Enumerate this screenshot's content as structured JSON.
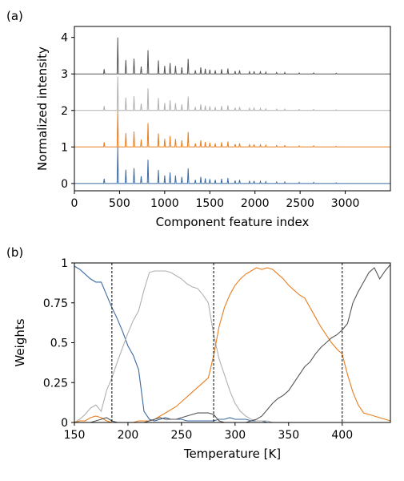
{
  "chart_data": [
    {
      "type": "line",
      "panel_label": "(a)",
      "xlabel": "Component feature index",
      "ylabel": "Normalized intensity",
      "xlim": [
        0,
        3500
      ],
      "ylim": [
        -0.2,
        4.3
      ],
      "xticks": [
        0,
        500,
        1000,
        1500,
        2000,
        2500,
        3000
      ],
      "yticks": [
        0,
        1,
        2,
        3,
        4
      ],
      "grid": false,
      "legend": "none",
      "peaks": [
        {
          "x": 330,
          "h": 0.13
        },
        {
          "x": 480,
          "h": 1.0
        },
        {
          "x": 570,
          "h": 0.38
        },
        {
          "x": 660,
          "h": 0.42
        },
        {
          "x": 740,
          "h": 0.2
        },
        {
          "x": 815,
          "h": 0.65
        },
        {
          "x": 930,
          "h": 0.37
        },
        {
          "x": 1000,
          "h": 0.22
        },
        {
          "x": 1060,
          "h": 0.3
        },
        {
          "x": 1120,
          "h": 0.22
        },
        {
          "x": 1190,
          "h": 0.18
        },
        {
          "x": 1260,
          "h": 0.41
        },
        {
          "x": 1340,
          "h": 0.1
        },
        {
          "x": 1400,
          "h": 0.18
        },
        {
          "x": 1450,
          "h": 0.14
        },
        {
          "x": 1500,
          "h": 0.12
        },
        {
          "x": 1560,
          "h": 0.1
        },
        {
          "x": 1630,
          "h": 0.13
        },
        {
          "x": 1700,
          "h": 0.15
        },
        {
          "x": 1780,
          "h": 0.08
        },
        {
          "x": 1830,
          "h": 0.1
        },
        {
          "x": 1940,
          "h": 0.06
        },
        {
          "x": 1990,
          "h": 0.07
        },
        {
          "x": 2060,
          "h": 0.06
        },
        {
          "x": 2120,
          "h": 0.05
        },
        {
          "x": 2240,
          "h": 0.04
        },
        {
          "x": 2330,
          "h": 0.04
        },
        {
          "x": 2490,
          "h": 0.03
        },
        {
          "x": 2650,
          "h": 0.03
        },
        {
          "x": 2900,
          "h": 0.02
        }
      ],
      "series": [
        {
          "offset": 0,
          "scale": 1.0,
          "color": "#3b6aa0"
        },
        {
          "offset": 1,
          "scale": 1.0,
          "color": "#e87e1f"
        },
        {
          "offset": 2,
          "scale": 0.93,
          "color": "#b0b0b0"
        },
        {
          "offset": 3,
          "scale": 1.0,
          "color": "#555555"
        }
      ]
    },
    {
      "type": "line",
      "panel_label": "(b)",
      "xlabel": "Temperature [K]",
      "ylabel": "Weights",
      "xlim": [
        150,
        445
      ],
      "ylim": [
        0,
        1
      ],
      "xticks": [
        150,
        200,
        250,
        300,
        350,
        400
      ],
      "yticks": [
        0,
        0.25,
        0.5,
        0.75,
        1
      ],
      "ytick_labels": [
        "0",
        "0.25",
        "0.5",
        "0.75",
        "1"
      ],
      "grid": false,
      "legend": "none",
      "vlines": [
        185,
        280,
        400
      ],
      "series": [
        {
          "color": "#3b6aa0",
          "x": [
            150,
            155,
            160,
            165,
            170,
            175,
            180,
            185,
            190,
            195,
            200,
            205,
            210,
            215,
            220,
            225,
            230,
            235,
            240,
            245,
            250,
            255,
            260,
            265,
            270,
            275,
            280,
            285,
            290,
            295,
            300,
            305,
            310,
            315,
            320,
            325,
            330,
            335,
            340,
            345,
            350,
            355,
            360,
            365,
            370,
            375,
            380,
            385,
            390,
            395,
            400,
            405,
            410,
            415,
            420,
            425,
            430,
            435,
            440,
            445
          ],
          "y": [
            0.98,
            0.96,
            0.93,
            0.9,
            0.88,
            0.88,
            0.8,
            0.72,
            0.65,
            0.57,
            0.48,
            0.42,
            0.33,
            0.07,
            0.02,
            0.01,
            0.02,
            0.03,
            0.02,
            0.02,
            0.02,
            0.01,
            0.01,
            0.01,
            0.01,
            0.01,
            0.01,
            0.02,
            0.02,
            0.03,
            0.02,
            0.02,
            0.02,
            0.01,
            0.01,
            0.01,
            0.0,
            0,
            0,
            0,
            0,
            0,
            0,
            0,
            0,
            0,
            0,
            0,
            0,
            0,
            0,
            0,
            0,
            0,
            0,
            0,
            0,
            0,
            0,
            0
          ]
        },
        {
          "color": "#b0b0b0",
          "x": [
            150,
            155,
            160,
            165,
            170,
            175,
            180,
            185,
            190,
            195,
            200,
            205,
            210,
            215,
            220,
            225,
            230,
            235,
            240,
            245,
            250,
            255,
            260,
            265,
            270,
            275,
            280,
            285,
            290,
            295,
            300,
            305,
            310,
            315,
            320,
            325,
            330,
            335,
            340,
            345,
            350,
            355,
            360,
            365,
            370,
            375,
            380,
            385,
            390,
            395,
            400,
            405,
            410,
            415,
            420,
            425,
            430,
            435,
            440,
            445
          ],
          "y": [
            0.0,
            0.02,
            0.05,
            0.09,
            0.11,
            0.07,
            0.2,
            0.28,
            0.38,
            0.47,
            0.56,
            0.64,
            0.7,
            0.83,
            0.94,
            0.95,
            0.95,
            0.95,
            0.94,
            0.92,
            0.9,
            0.87,
            0.85,
            0.84,
            0.8,
            0.75,
            0.55,
            0.4,
            0.3,
            0.2,
            0.12,
            0.07,
            0.04,
            0.02,
            0.01,
            0.01,
            0.01,
            0.0,
            0,
            0,
            0,
            0,
            0,
            0,
            0,
            0,
            0,
            0,
            0,
            0,
            0,
            0,
            0,
            0,
            0,
            0,
            0,
            0,
            0,
            0
          ]
        },
        {
          "color": "#e87e1f",
          "x": [
            150,
            155,
            160,
            165,
            170,
            175,
            180,
            185,
            190,
            195,
            200,
            205,
            210,
            215,
            220,
            225,
            230,
            235,
            240,
            245,
            250,
            255,
            260,
            265,
            270,
            275,
            280,
            285,
            290,
            295,
            300,
            305,
            310,
            315,
            320,
            325,
            330,
            335,
            340,
            345,
            350,
            355,
            360,
            365,
            370,
            375,
            380,
            385,
            390,
            395,
            400,
            405,
            410,
            415,
            420,
            425,
            430,
            435,
            440,
            445
          ],
          "y": [
            0.0,
            0.01,
            0.01,
            0.03,
            0.04,
            0.03,
            0.01,
            0.0,
            0.0,
            0.0,
            0.0,
            0.0,
            0.01,
            0.01,
            0.01,
            0.02,
            0.04,
            0.06,
            0.08,
            0.1,
            0.13,
            0.16,
            0.19,
            0.22,
            0.25,
            0.28,
            0.42,
            0.6,
            0.72,
            0.8,
            0.86,
            0.9,
            0.93,
            0.95,
            0.97,
            0.96,
            0.97,
            0.96,
            0.93,
            0.9,
            0.86,
            0.83,
            0.8,
            0.78,
            0.72,
            0.66,
            0.6,
            0.55,
            0.5,
            0.46,
            0.43,
            0.3,
            0.19,
            0.11,
            0.06,
            0.05,
            0.04,
            0.03,
            0.02,
            0.01
          ]
        },
        {
          "color": "#555555",
          "x": [
            150,
            155,
            160,
            165,
            170,
            175,
            180,
            185,
            190,
            195,
            200,
            205,
            210,
            215,
            220,
            225,
            230,
            235,
            240,
            245,
            250,
            255,
            260,
            265,
            270,
            275,
            280,
            285,
            290,
            295,
            300,
            305,
            310,
            315,
            320,
            325,
            330,
            335,
            340,
            345,
            350,
            355,
            360,
            365,
            370,
            375,
            380,
            385,
            390,
            395,
            400,
            405,
            410,
            415,
            420,
            425,
            430,
            435,
            440,
            445
          ],
          "y": [
            0.0,
            0.0,
            0.0,
            0.0,
            0.01,
            0.02,
            0.03,
            0.01,
            0.0,
            0.0,
            0.0,
            0.0,
            0.0,
            0.0,
            0.01,
            0.02,
            0.03,
            0.02,
            0.02,
            0.02,
            0.03,
            0.04,
            0.05,
            0.06,
            0.06,
            0.06,
            0.05,
            0.01,
            0.0,
            0.0,
            0.0,
            0.0,
            0.0,
            0.01,
            0.02,
            0.04,
            0.08,
            0.12,
            0.15,
            0.17,
            0.2,
            0.25,
            0.3,
            0.35,
            0.38,
            0.43,
            0.47,
            0.5,
            0.53,
            0.55,
            0.58,
            0.62,
            0.75,
            0.82,
            0.88,
            0.94,
            0.97,
            0.9,
            0.95,
            0.99
          ]
        }
      ]
    }
  ]
}
